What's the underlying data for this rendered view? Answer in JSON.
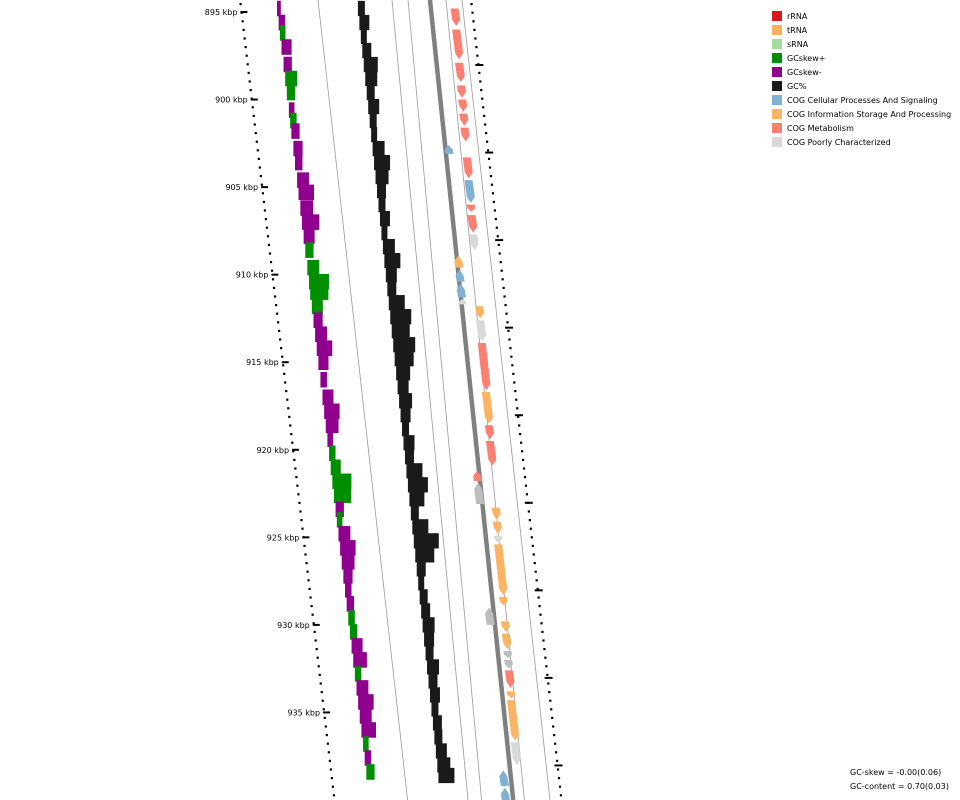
{
  "ticks": [
    {
      "label": "895 kbp",
      "kbp": 895
    },
    {
      "label": "900 kbp",
      "kbp": 900
    },
    {
      "label": "905 kbp",
      "kbp": 905
    },
    {
      "label": "910 kbp",
      "kbp": 910
    },
    {
      "label": "915 kbp",
      "kbp": 915
    },
    {
      "label": "920 kbp",
      "kbp": 920
    },
    {
      "label": "925 kbp",
      "kbp": 925
    },
    {
      "label": "930 kbp",
      "kbp": 930
    },
    {
      "label": "935 kbp",
      "kbp": 935
    }
  ],
  "legend": [
    {
      "label": "rRNA",
      "color": "#d7191c"
    },
    {
      "label": "tRNA",
      "color": "#fdae61"
    },
    {
      "label": "sRNA",
      "color": "#a6dba0"
    },
    {
      "label": "GCskew+",
      "color": "#008f00"
    },
    {
      "label": "GCskew-",
      "color": "#8f008f"
    },
    {
      "label": "GC%",
      "color": "#1a1a1a"
    },
    {
      "label": "COG Cellular Processes And Signaling",
      "color": "#80b1d3"
    },
    {
      "label": "COG Information Storage And Processing",
      "color": "#fdb462"
    },
    {
      "label": "COG Metabolism",
      "color": "#fb8072"
    },
    {
      "label": "COG Poorly Characterized",
      "color": "#d9d9d9"
    }
  ],
  "stats": {
    "gc_skew": "GC-skew = -0.00(0.06)",
    "gc_content": "GC-content = 0.70(0.03)"
  },
  "tracks": {
    "skew_colors": {
      "positive": "#008f00",
      "negative": "#8f008f"
    },
    "gc_color": "#1a1a1a",
    "backbone_color": "#808080",
    "skew": [
      {
        "kbp": 894.8,
        "v": -0.1
      },
      {
        "kbp": 895.6,
        "v": -0.25
      },
      {
        "kbp": 896.2,
        "v": 0.2
      },
      {
        "kbp": 897.0,
        "v": -0.45
      },
      {
        "kbp": 898.0,
        "v": -0.35
      },
      {
        "kbp": 898.8,
        "v": 0.55
      },
      {
        "kbp": 899.6,
        "v": 0.35
      },
      {
        "kbp": 900.6,
        "v": -0.2
      },
      {
        "kbp": 901.2,
        "v": 0.25
      },
      {
        "kbp": 901.8,
        "v": -0.35
      },
      {
        "kbp": 902.8,
        "v": -0.4
      },
      {
        "kbp": 903.6,
        "v": -0.3
      },
      {
        "kbp": 904.6,
        "v": -0.55
      },
      {
        "kbp": 905.3,
        "v": -0.75
      },
      {
        "kbp": 906.2,
        "v": -0.6
      },
      {
        "kbp": 907.0,
        "v": -0.85
      },
      {
        "kbp": 907.8,
        "v": -0.5
      },
      {
        "kbp": 908.6,
        "v": 0.35
      },
      {
        "kbp": 909.6,
        "v": 0.55
      },
      {
        "kbp": 910.4,
        "v": 1.0
      },
      {
        "kbp": 911.0,
        "v": 0.9
      },
      {
        "kbp": 911.8,
        "v": 0.5
      },
      {
        "kbp": 912.6,
        "v": -0.4
      },
      {
        "kbp": 913.4,
        "v": -0.55
      },
      {
        "kbp": 914.2,
        "v": -0.75
      },
      {
        "kbp": 915.0,
        "v": -0.45
      },
      {
        "kbp": 916.0,
        "v": -0.25
      },
      {
        "kbp": 917.0,
        "v": -0.5
      },
      {
        "kbp": 917.8,
        "v": -0.75
      },
      {
        "kbp": 918.6,
        "v": -0.6
      },
      {
        "kbp": 919.4,
        "v": -0.2
      },
      {
        "kbp": 920.2,
        "v": 0.25
      },
      {
        "kbp": 921.0,
        "v": 0.45
      },
      {
        "kbp": 921.8,
        "v": 0.95
      },
      {
        "kbp": 922.6,
        "v": 0.85
      },
      {
        "kbp": 923.4,
        "v": -0.35
      },
      {
        "kbp": 924.0,
        "v": 0.2
      },
      {
        "kbp": 924.8,
        "v": -0.55
      },
      {
        "kbp": 925.6,
        "v": -0.75
      },
      {
        "kbp": 926.4,
        "v": -0.6
      },
      {
        "kbp": 927.2,
        "v": -0.4
      },
      {
        "kbp": 928.0,
        "v": -0.25
      },
      {
        "kbp": 928.8,
        "v": -0.3
      },
      {
        "kbp": 929.6,
        "v": 0.25
      },
      {
        "kbp": 930.4,
        "v": 0.3
      },
      {
        "kbp": 931.2,
        "v": -0.5
      },
      {
        "kbp": 932.0,
        "v": -0.65
      },
      {
        "kbp": 932.8,
        "v": 0.25
      },
      {
        "kbp": 933.6,
        "v": -0.55
      },
      {
        "kbp": 934.4,
        "v": -0.75
      },
      {
        "kbp": 935.2,
        "v": -0.55
      },
      {
        "kbp": 936.0,
        "v": -0.7
      },
      {
        "kbp": 936.8,
        "v": 0.2
      },
      {
        "kbp": 937.6,
        "v": -0.25
      },
      {
        "kbp": 938.4,
        "v": 0.35
      }
    ],
    "gc": [
      {
        "kbp": 894.8,
        "v": 0.1
      },
      {
        "kbp": 895.6,
        "v": 0.25
      },
      {
        "kbp": 896.4,
        "v": 0.05
      },
      {
        "kbp": 897.2,
        "v": 0.2
      },
      {
        "kbp": 898.0,
        "v": 0.45
      },
      {
        "kbp": 898.8,
        "v": 0.35
      },
      {
        "kbp": 899.6,
        "v": 0.15
      },
      {
        "kbp": 900.4,
        "v": 0.3
      },
      {
        "kbp": 901.2,
        "v": 0.1
      },
      {
        "kbp": 902.0,
        "v": 0.05
      },
      {
        "kbp": 902.8,
        "v": 0.35
      },
      {
        "kbp": 903.6,
        "v": 0.55
      },
      {
        "kbp": 904.4,
        "v": 0.4
      },
      {
        "kbp": 905.2,
        "v": 0.2
      },
      {
        "kbp": 906.0,
        "v": 0.1
      },
      {
        "kbp": 906.8,
        "v": 0.25
      },
      {
        "kbp": 907.6,
        "v": 0.05
      },
      {
        "kbp": 908.4,
        "v": 0.35
      },
      {
        "kbp": 909.2,
        "v": 0.55
      },
      {
        "kbp": 910.0,
        "v": 0.3
      },
      {
        "kbp": 910.8,
        "v": 0.2
      },
      {
        "kbp": 911.6,
        "v": 0.55
      },
      {
        "kbp": 912.4,
        "v": 0.8
      },
      {
        "kbp": 913.2,
        "v": 0.65
      },
      {
        "kbp": 914.0,
        "v": 0.85
      },
      {
        "kbp": 914.8,
        "v": 0.7
      },
      {
        "kbp": 915.6,
        "v": 0.45
      },
      {
        "kbp": 916.4,
        "v": 0.3
      },
      {
        "kbp": 917.2,
        "v": 0.4
      },
      {
        "kbp": 918.0,
        "v": 0.25
      },
      {
        "kbp": 918.8,
        "v": 0.1
      },
      {
        "kbp": 919.6,
        "v": 0.3
      },
      {
        "kbp": 920.4,
        "v": 0.2
      },
      {
        "kbp": 921.2,
        "v": 0.55
      },
      {
        "kbp": 922.0,
        "v": 0.75
      },
      {
        "kbp": 922.8,
        "v": 0.5
      },
      {
        "kbp": 923.6,
        "v": 0.15
      },
      {
        "kbp": 924.4,
        "v": 0.55
      },
      {
        "kbp": 925.2,
        "v": 1.0
      },
      {
        "kbp": 926.0,
        "v": 0.7
      },
      {
        "kbp": 926.8,
        "v": 0.2
      },
      {
        "kbp": 927.6,
        "v": 0.05
      },
      {
        "kbp": 928.4,
        "v": 0.15
      },
      {
        "kbp": 929.2,
        "v": 0.2
      },
      {
        "kbp": 930.0,
        "v": 0.35
      },
      {
        "kbp": 930.8,
        "v": 0.25
      },
      {
        "kbp": 931.6,
        "v": 0.15
      },
      {
        "kbp": 932.4,
        "v": 0.35
      },
      {
        "kbp": 933.2,
        "v": 0.2
      },
      {
        "kbp": 934.0,
        "v": 0.25
      },
      {
        "kbp": 934.8,
        "v": 0.1
      },
      {
        "kbp": 935.6,
        "v": 0.2
      },
      {
        "kbp": 936.4,
        "v": 0.15
      },
      {
        "kbp": 937.2,
        "v": 0.3
      },
      {
        "kbp": 938.0,
        "v": 0.4
      },
      {
        "kbp": 938.6,
        "v": 0.55
      }
    ],
    "features": [
      {
        "start": 894.8,
        "end": 895.8,
        "strand": 1,
        "color": "#fb8072"
      },
      {
        "start": 896.0,
        "end": 897.7,
        "strand": 1,
        "color": "#fb8072"
      },
      {
        "start": 897.9,
        "end": 899.0,
        "strand": 1,
        "color": "#fb8072"
      },
      {
        "start": 899.2,
        "end": 899.9,
        "strand": 1,
        "color": "#fb8072"
      },
      {
        "start": 900.0,
        "end": 900.7,
        "strand": 1,
        "color": "#fb8072"
      },
      {
        "start": 900.8,
        "end": 901.5,
        "strand": 1,
        "color": "#fb8072"
      },
      {
        "start": 901.6,
        "end": 902.4,
        "strand": 1,
        "color": "#fb8072"
      },
      {
        "start": 902.6,
        "end": 903.1,
        "strand": -1,
        "color": "#80b1d3"
      },
      {
        "start": 903.3,
        "end": 904.5,
        "strand": 1,
        "color": "#fb8072"
      },
      {
        "start": 904.6,
        "end": 905.9,
        "strand": 1,
        "color": "#80b1d3"
      },
      {
        "start": 906.0,
        "end": 906.4,
        "strand": 1,
        "color": "#fb8072"
      },
      {
        "start": 906.6,
        "end": 907.6,
        "strand": 1,
        "color": "#fb8072"
      },
      {
        "start": 907.7,
        "end": 908.6,
        "strand": 1,
        "color": "#d9d9d9"
      },
      {
        "start": 908.9,
        "end": 909.6,
        "strand": -1,
        "color": "#fdb462"
      },
      {
        "start": 909.7,
        "end": 910.4,
        "strand": -1,
        "color": "#80b1d3"
      },
      {
        "start": 910.5,
        "end": 911.3,
        "strand": -1,
        "color": "#80b1d3"
      },
      {
        "start": 911.4,
        "end": 911.7,
        "strand": -1,
        "color": "#d9d9d9"
      },
      {
        "start": 911.8,
        "end": 912.5,
        "strand": 1,
        "color": "#fdb462"
      },
      {
        "start": 912.6,
        "end": 913.8,
        "strand": 1,
        "color": "#d9d9d9"
      },
      {
        "start": 913.9,
        "end": 916.6,
        "strand": 1,
        "color": "#fb8072"
      },
      {
        "start": 916.7,
        "end": 918.5,
        "strand": 1,
        "color": "#fdb462"
      },
      {
        "start": 918.6,
        "end": 919.4,
        "strand": 1,
        "color": "#fb8072"
      },
      {
        "start": 919.5,
        "end": 920.9,
        "strand": 1,
        "color": "#fb8072"
      },
      {
        "start": 921.2,
        "end": 921.8,
        "strand": -1,
        "color": "#fb8072"
      },
      {
        "start": 921.9,
        "end": 923.1,
        "strand": -1,
        "color": "#bdbdbd"
      },
      {
        "start": 923.3,
        "end": 924.0,
        "strand": 1,
        "color": "#fdb462"
      },
      {
        "start": 924.1,
        "end": 924.8,
        "strand": 1,
        "color": "#fdb462"
      },
      {
        "start": 924.9,
        "end": 925.3,
        "strand": 1,
        "color": "#d9d9d9"
      },
      {
        "start": 925.4,
        "end": 928.3,
        "strand": 1,
        "color": "#fdb462"
      },
      {
        "start": 928.4,
        "end": 928.9,
        "strand": 1,
        "color": "#fdb462"
      },
      {
        "start": 929.0,
        "end": 930.0,
        "strand": -1,
        "color": "#bdbdbd"
      },
      {
        "start": 929.8,
        "end": 930.4,
        "strand": 1,
        "color": "#fdb462"
      },
      {
        "start": 930.5,
        "end": 931.4,
        "strand": 1,
        "color": "#fdb462"
      },
      {
        "start": 931.5,
        "end": 931.9,
        "strand": 1,
        "color": "#bdbdbd"
      },
      {
        "start": 932.0,
        "end": 932.5,
        "strand": 1,
        "color": "#bdbdbd"
      },
      {
        "start": 932.6,
        "end": 933.6,
        "strand": 1,
        "color": "#fb8072"
      },
      {
        "start": 933.8,
        "end": 934.2,
        "strand": 1,
        "color": "#fdb462"
      },
      {
        "start": 934.3,
        "end": 936.6,
        "strand": 1,
        "color": "#fdb462"
      },
      {
        "start": 936.7,
        "end": 938.0,
        "strand": 1,
        "color": "#d9d9d9"
      },
      {
        "start": 938.3,
        "end": 939.2,
        "strand": -1,
        "color": "#80b1d3"
      },
      {
        "start": 939.3,
        "end": 940.2,
        "strand": -1,
        "color": "#80b1d3"
      }
    ]
  }
}
